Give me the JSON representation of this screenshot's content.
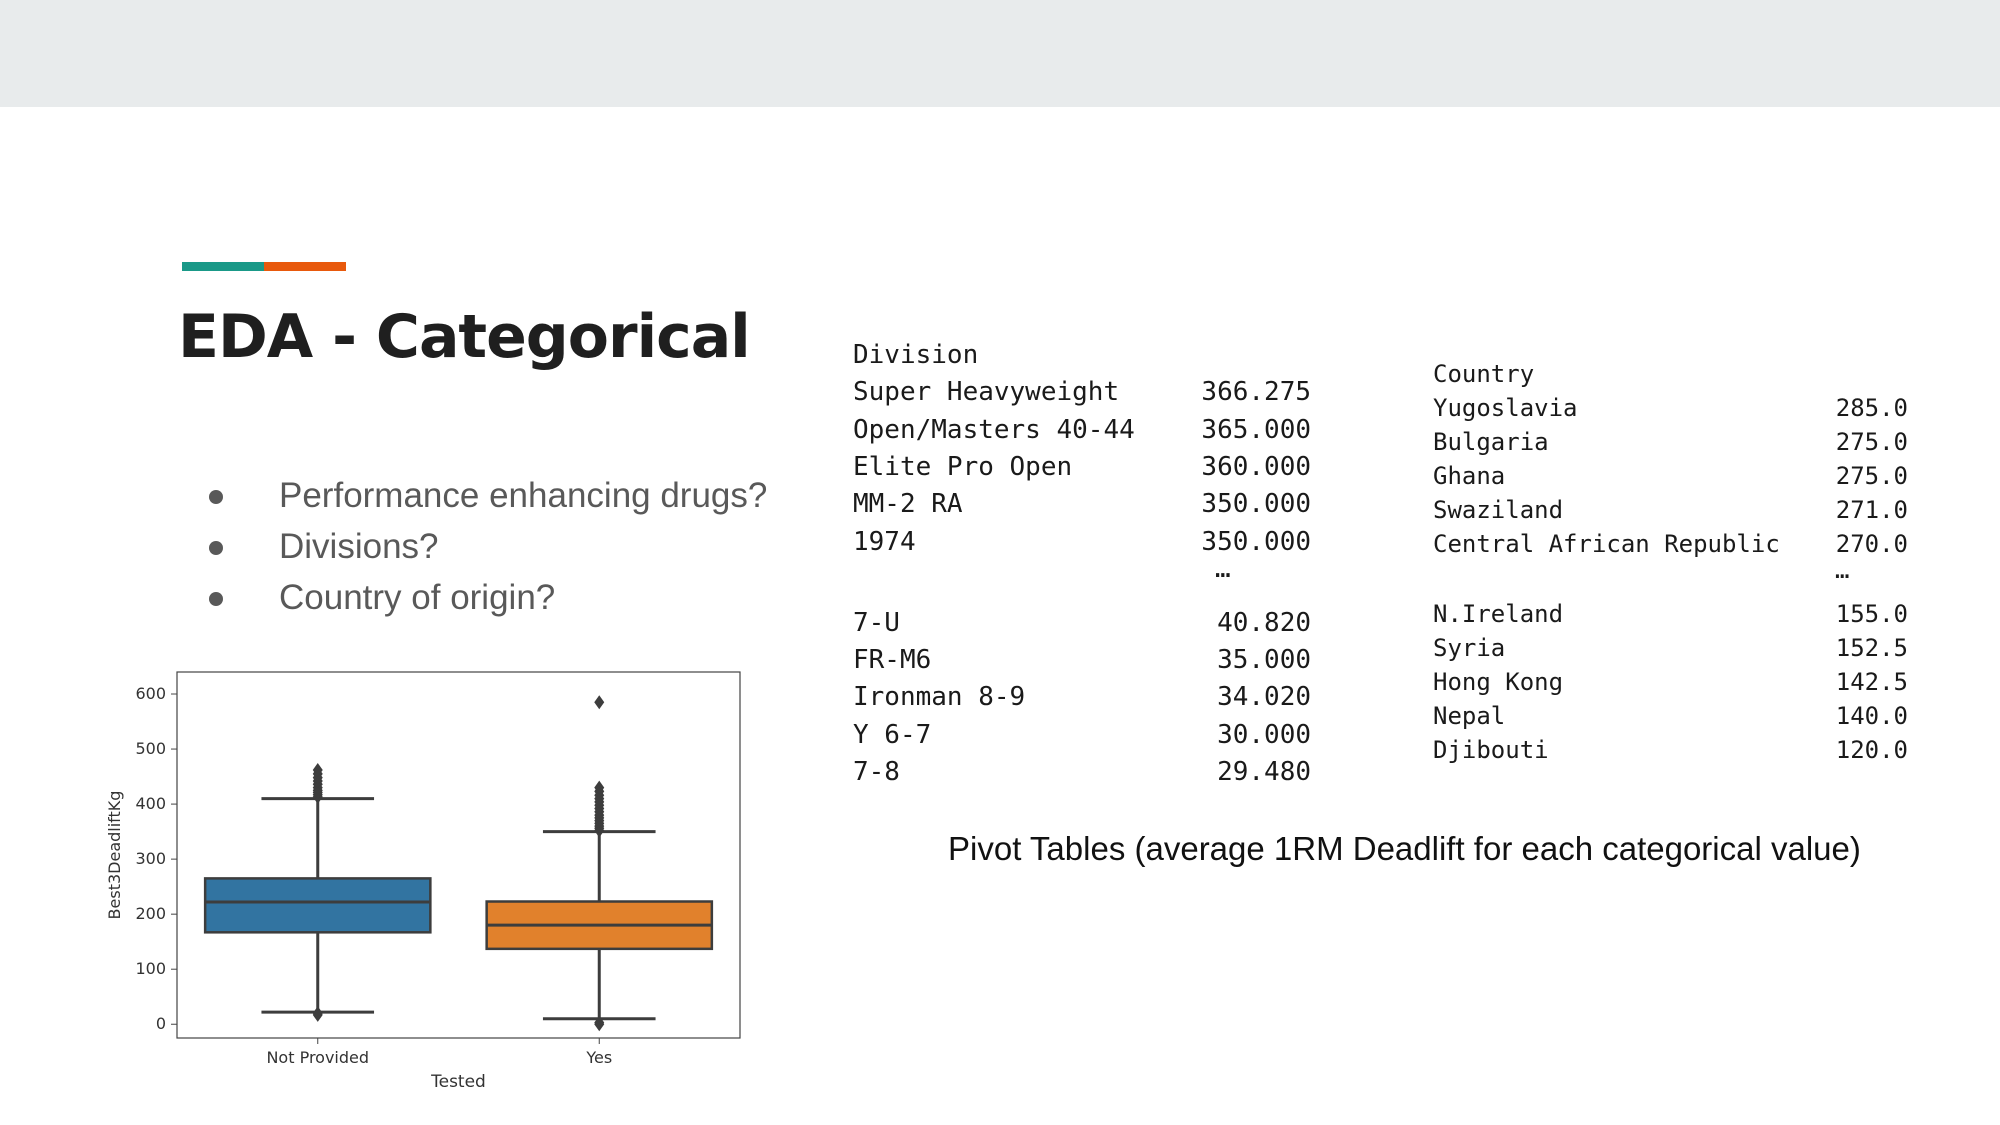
{
  "slide": {
    "title": "EDA - Categorical",
    "accent_colors": [
      "#1a9988",
      "#e8590c"
    ],
    "background_band": "#e8ebec",
    "bullets": [
      "Performance enhancing drugs?",
      "Divisions?",
      "Country of origin?"
    ],
    "caption": "Pivot Tables (average 1RM Deadlift for each categorical value)"
  },
  "division_table": {
    "header": "Division",
    "top_rows": [
      {
        "label": "Super Heavyweight",
        "value": "366.275"
      },
      {
        "label": "Open/Masters 40-44",
        "value": "365.000"
      },
      {
        "label": "Elite Pro Open",
        "value": "360.000"
      },
      {
        "label": "MM-2 RA",
        "value": "350.000"
      },
      {
        "label": "1974",
        "value": "350.000"
      }
    ],
    "ellipsis": "…",
    "bottom_rows": [
      {
        "label": "7-U",
        "value": "40.820"
      },
      {
        "label": "FR-M6",
        "value": "35.000"
      },
      {
        "label": "Ironman 8-9",
        "value": "34.020"
      },
      {
        "label": "Y 6-7",
        "value": "30.000"
      },
      {
        "label": "7-8",
        "value": "29.480"
      }
    ]
  },
  "country_table": {
    "header": "Country",
    "top_rows": [
      {
        "label": "Yugoslavia",
        "value": "285.0"
      },
      {
        "label": "Bulgaria",
        "value": "275.0"
      },
      {
        "label": "Ghana",
        "value": "275.0"
      },
      {
        "label": "Swaziland",
        "value": "271.0"
      },
      {
        "label": "Central African Republic",
        "value": "270.0"
      }
    ],
    "ellipsis": "…",
    "bottom_rows": [
      {
        "label": "N.Ireland",
        "value": "155.0"
      },
      {
        "label": "Syria",
        "value": "152.5"
      },
      {
        "label": "Hong Kong",
        "value": "142.5"
      },
      {
        "label": "Nepal",
        "value": "140.0"
      },
      {
        "label": "Djibouti",
        "value": "120.0"
      }
    ]
  },
  "chart_data": {
    "type": "box",
    "xlabel": "Tested",
    "ylabel": "Best3DeadliftKg",
    "ylim": [
      -25,
      640
    ],
    "yticks": [
      0,
      100,
      200,
      300,
      400,
      500,
      600
    ],
    "grid": false,
    "categories": [
      "Not Provided",
      "Yes"
    ],
    "boxes": [
      {
        "category": "Not Provided",
        "color": "#3274a1",
        "whisker_low": 22,
        "q1": 167,
        "median": 222,
        "q3": 265,
        "whisker_high": 410,
        "outliers": [
          17,
          20,
          413,
          417,
          421,
          425,
          430,
          436,
          442,
          448,
          455,
          462
        ]
      },
      {
        "category": "Yes",
        "color": "#e1812c",
        "whisker_low": 10,
        "q1": 137,
        "median": 180,
        "q3": 223,
        "whisker_high": 350,
        "outliers": [
          0,
          3,
          352,
          356,
          360,
          365,
          370,
          375,
          380,
          386,
          392,
          398,
          404,
          410,
          416,
          423,
          430,
          585
        ]
      }
    ]
  }
}
